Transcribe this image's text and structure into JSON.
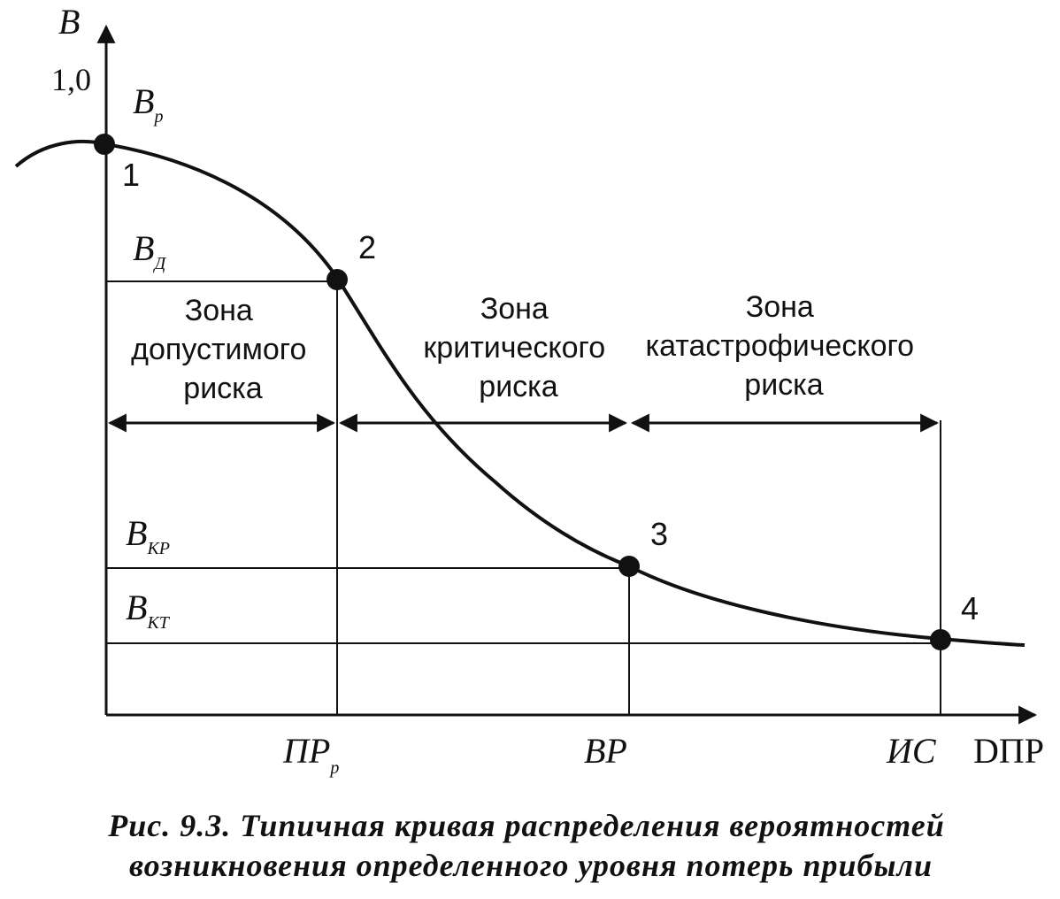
{
  "axes": {
    "y_label": "В",
    "y_tick_top": "1,0",
    "x_label": "DПР",
    "x_ticks": [
      {
        "main": "ПР",
        "sub": "р"
      },
      {
        "main": "ВР",
        "sub": ""
      },
      {
        "main": "ИС",
        "sub": ""
      }
    ]
  },
  "levels": [
    {
      "main": "В",
      "sub": "р"
    },
    {
      "main": "В",
      "sub": "Д"
    },
    {
      "main": "В",
      "sub": "КР"
    },
    {
      "main": "В",
      "sub": "КТ"
    }
  ],
  "points": [
    "1",
    "2",
    "3",
    "4"
  ],
  "zones": [
    [
      "Зона",
      "допустимого",
      "риска"
    ],
    [
      "Зона",
      "критического",
      "риска"
    ],
    [
      "Зона",
      "катастрофического",
      "риска"
    ]
  ],
  "caption": [
    "Рис. 9.3. Типичная кривая распределения вероятностей",
    "возникновения определенного уровня потерь прибыли"
  ]
}
